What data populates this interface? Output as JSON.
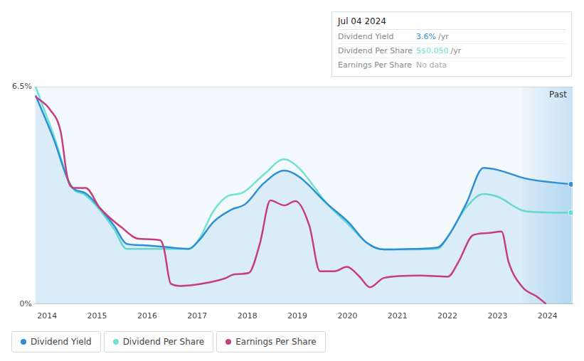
{
  "chart_data": {
    "type": "line",
    "xlim": [
      2013.74,
      2024.5
    ],
    "xticks": [
      2014,
      2015,
      2016,
      2017,
      2018,
      2019,
      2020,
      2021,
      2022,
      2023,
      2024
    ],
    "ylim": [
      0,
      6.5
    ],
    "yticks": [
      {
        "value": 0,
        "label": "0%"
      },
      {
        "value": 6.5,
        "label": "6.5%"
      }
    ],
    "grid": true,
    "legend": "bottom-left",
    "series": [
      {
        "name": "Dividend Yield",
        "color": "#2d8fd5",
        "marker": "end",
        "x": [
          2013.77,
          2014.13,
          2014.48,
          2014.77,
          2015.05,
          2015.34,
          2015.59,
          2015.9,
          2016.33,
          2016.83,
          2017.04,
          2017.32,
          2017.68,
          2017.96,
          2018.32,
          2018.74,
          2019.03,
          2019.6,
          2020.02,
          2020.38,
          2020.73,
          2021.3,
          2021.8,
          2022.01,
          2022.37,
          2022.72,
          2023.0,
          2023.57,
          2024.47
        ],
        "values": [
          6.24,
          4.94,
          3.53,
          3.31,
          2.88,
          2.34,
          1.8,
          1.76,
          1.71,
          1.65,
          1.91,
          2.45,
          2.82,
          2.99,
          3.6,
          3.99,
          3.81,
          2.99,
          2.45,
          1.84,
          1.63,
          1.65,
          1.69,
          2.02,
          2.99,
          4.07,
          4.01,
          3.75,
          3.58
        ]
      },
      {
        "name": "Dividend Per Share",
        "color": "#6fe3cf",
        "marker": "end",
        "x": [
          2013.77,
          2014.13,
          2014.48,
          2014.77,
          2015.05,
          2015.34,
          2015.59,
          2016.33,
          2016.83,
          2017.04,
          2017.32,
          2017.61,
          2017.89,
          2018.32,
          2018.74,
          2019.03,
          2019.6,
          2020.02,
          2020.38,
          2020.73,
          2021.8,
          2022.01,
          2022.37,
          2022.72,
          2023.0,
          2023.57,
          2024.47
        ],
        "values": [
          6.5,
          5.05,
          3.53,
          3.25,
          2.82,
          2.23,
          1.65,
          1.65,
          1.65,
          1.95,
          2.77,
          3.23,
          3.32,
          3.86,
          4.33,
          4.07,
          2.99,
          2.38,
          1.84,
          1.63,
          1.65,
          2.02,
          2.88,
          3.29,
          3.21,
          2.77,
          2.73
        ]
      },
      {
        "name": "Earnings Per Share",
        "color": "#c63e7e",
        "marker": "none",
        "x": [
          2013.77,
          2014.06,
          2014.27,
          2014.41,
          2014.55,
          2014.77,
          2015.05,
          2015.48,
          2015.83,
          2016.26,
          2016.33,
          2016.47,
          2016.68,
          2017.11,
          2017.54,
          2017.75,
          2018.03,
          2018.25,
          2018.46,
          2018.74,
          2018.96,
          2019.24,
          2019.45,
          2019.74,
          2019.99,
          2020.24,
          2020.45,
          2020.73,
          2021.44,
          2022.01,
          2022.22,
          2022.51,
          2022.79,
          2023.08,
          2023.22,
          2023.5,
          2023.79,
          2023.97
        ],
        "values": [
          6.2,
          5.81,
          5.16,
          3.75,
          3.47,
          3.47,
          2.88,
          2.3,
          1.95,
          1.91,
          1.69,
          0.61,
          0.54,
          0.61,
          0.76,
          0.89,
          0.93,
          1.8,
          3.1,
          2.95,
          3.08,
          2.34,
          0.98,
          0.98,
          1.11,
          0.82,
          0.5,
          0.78,
          0.85,
          0.82,
          1.26,
          2.06,
          2.12,
          2.17,
          1.26,
          0.5,
          0.22,
          0
        ]
      }
    ],
    "annotations": [
      {
        "text": "Past",
        "from": 2023.5
      }
    ],
    "tooltip": {
      "date": "Jul 04 2024",
      "rows": [
        {
          "label": "Dividend Yield",
          "value": "3.6%",
          "unit": "/yr",
          "color": "#2d8fd5"
        },
        {
          "label": "Dividend Per Share",
          "value": "S$0.050",
          "unit": "/yr",
          "color": "#6fe3cf"
        },
        {
          "label": "Earnings Per Share",
          "value": "No data",
          "color": "#aaaaaa"
        }
      ]
    }
  }
}
